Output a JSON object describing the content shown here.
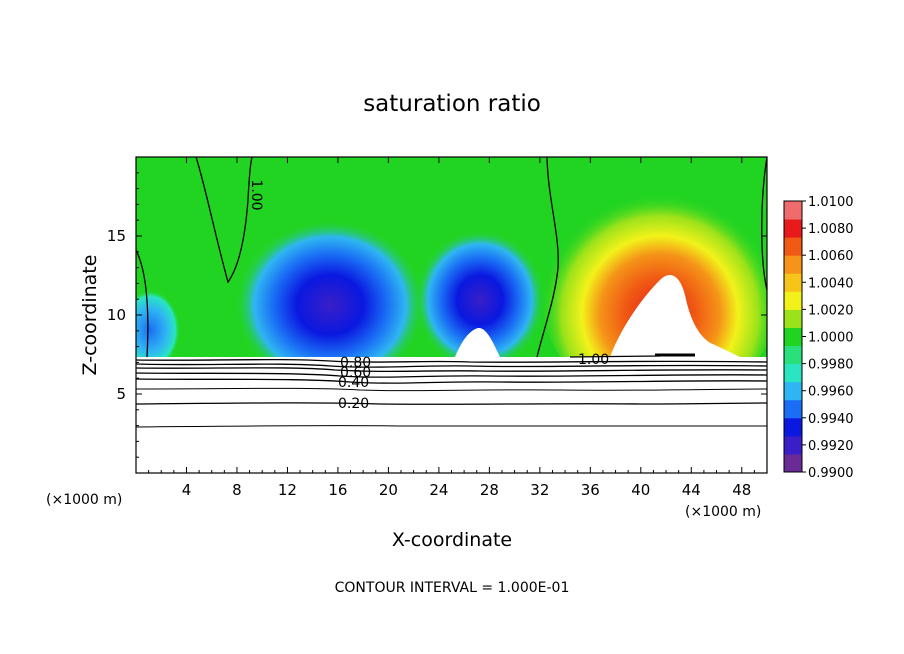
{
  "chart_data": {
    "type": "heatmap",
    "title": "saturation ratio",
    "xlabel": "X-coordinate",
    "ylabel": "Z-coordinate",
    "x_unit_left": "(×1000 m)",
    "x_unit_right": "(×1000 m)",
    "xlim": [
      0,
      50
    ],
    "ylim": [
      0,
      20
    ],
    "x_ticks": [
      4,
      8,
      12,
      16,
      20,
      24,
      28,
      32,
      36,
      40,
      44,
      48
    ],
    "y_ticks": [
      5,
      10,
      15
    ],
    "colorbar": {
      "min": 0.99,
      "max": 1.01,
      "labels": [
        "0.9900",
        "0.9920",
        "0.9940",
        "0.9960",
        "0.9980",
        "1.0000",
        "1.0020",
        "1.0040",
        "1.0060",
        "1.0080",
        "1.0100"
      ],
      "colors": [
        "#6a2b96",
        "#3a1fc8",
        "#0a18e0",
        "#1a6ef5",
        "#2fb6f2",
        "#29e5c2",
        "#29e07a",
        "#22d422",
        "#9be21a",
        "#f2f21a",
        "#f7c41a",
        "#f59418",
        "#f05a14",
        "#e81a1a",
        "#f06c6c"
      ]
    },
    "contour_labels": [
      "1.00",
      "1.00",
      "0.80",
      "0.60",
      "0.40",
      "0.20"
    ],
    "contour_interval_text": "CONTOUR INTERVAL = 1.000E-01"
  }
}
